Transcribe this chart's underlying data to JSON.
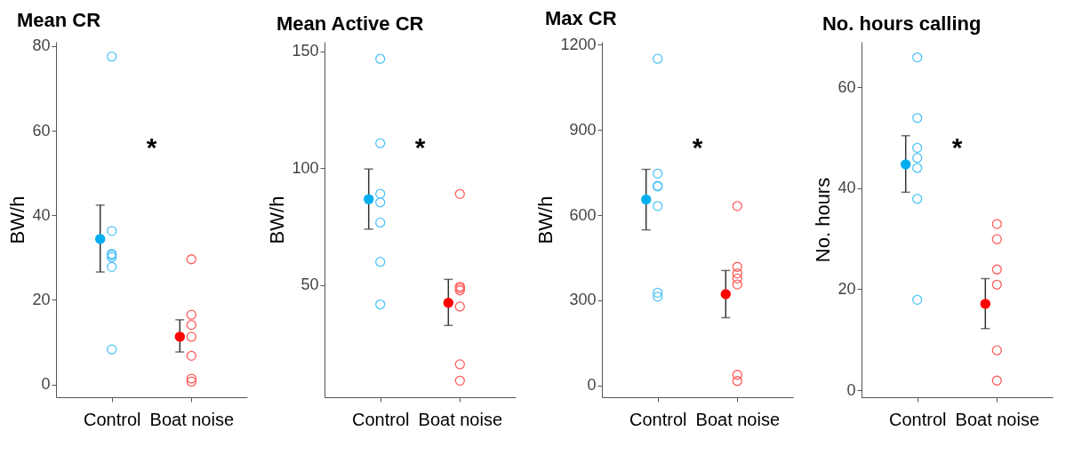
{
  "chart_data": [
    {
      "type": "scatter",
      "title": "Mean CR",
      "ylabel": "BW/h",
      "categories": [
        "Control",
        "Boat noise"
      ],
      "ylim": [
        -3,
        81
      ],
      "yticks": [
        0,
        20,
        40,
        60,
        80
      ],
      "grid": false,
      "marker": "circle",
      "series": [
        {
          "color": "#4fc3f7",
          "x": [
            "Control",
            "Control",
            "Control",
            "Control",
            "Control",
            "Control",
            "Control"
          ],
          "values": [
            77.5,
            36.3,
            30.9,
            30.6,
            30.1,
            27.8,
            8.3
          ]
        },
        {
          "color": "#ff5c5c",
          "x": [
            "Boat noise",
            "Boat noise",
            "Boat noise",
            "Boat noise",
            "Boat noise",
            "Boat noise",
            "Boat noise"
          ],
          "values": [
            29.6,
            16.5,
            14.1,
            11.3,
            6.8,
            1.4,
            0.7
          ]
        },
        {
          "color": "#00aeef",
          "x": [
            "Control"
          ],
          "values": [
            34.4
          ],
          "errors": [
            [
              26.6,
              42.4
            ]
          ]
        },
        {
          "color": "#ff0000",
          "x": [
            "Boat noise"
          ],
          "values": [
            11.3
          ],
          "errors": [
            [
              7.7,
              15.3
            ]
          ]
        }
      ],
      "annotations": [
        "*"
      ]
    },
    {
      "type": "scatter",
      "title": "Mean Active CR",
      "ylabel": "BW/h",
      "categories": [
        "Control",
        "Boat noise"
      ],
      "ylim": [
        2,
        154
      ],
      "yticks": [
        50,
        100,
        150
      ],
      "grid": false,
      "marker": "circle",
      "series": [
        {
          "color": "#4fc3f7",
          "x": [
            "Control",
            "Control",
            "Control",
            "Control",
            "Control",
            "Control",
            "Control"
          ],
          "values": [
            146.7,
            110.6,
            89,
            85.3,
            76.7,
            59.9,
            41.7
          ]
        },
        {
          "color": "#ff5c5c",
          "x": [
            "Boat noise",
            "Boat noise",
            "Boat noise",
            "Boat noise",
            "Boat noise",
            "Boat noise",
            "Boat noise"
          ],
          "values": [
            88.9,
            49.3,
            48.6,
            47.7,
            40.8,
            16.1,
            9.1
          ]
        },
        {
          "color": "#00aeef",
          "x": [
            "Control"
          ],
          "values": [
            86.7
          ],
          "errors": [
            [
              73.9,
              99.6
            ]
          ]
        },
        {
          "color": "#ff0000",
          "x": [
            "Boat noise"
          ],
          "values": [
            42.4
          ],
          "errors": [
            [
              32.7,
              52.4
            ]
          ]
        }
      ],
      "annotations": [
        "*"
      ]
    },
    {
      "type": "scatter",
      "title": "Max CR",
      "ylabel": "BW/h",
      "categories": [
        "Control",
        "Boat noise"
      ],
      "ylim": [
        -41,
        1210
      ],
      "yticks": [
        0,
        300,
        600,
        900,
        1200
      ],
      "grid": false,
      "marker": "circle",
      "series": [
        {
          "color": "#4fc3f7",
          "x": [
            "Control",
            "Control",
            "Control",
            "Control",
            "Control",
            "Control",
            "Control"
          ],
          "values": [
            1150,
            746,
            703,
            701,
            632,
            327,
            313
          ]
        },
        {
          "color": "#ff5c5c",
          "x": [
            "Boat noise",
            "Boat noise",
            "Boat noise",
            "Boat noise",
            "Boat noise",
            "Boat noise",
            "Boat noise"
          ],
          "values": [
            632,
            418,
            395,
            377,
            356,
            38,
            16
          ]
        },
        {
          "color": "#00aeef",
          "x": [
            "Control"
          ],
          "values": [
            655
          ],
          "errors": [
            [
              548,
              761
            ]
          ]
        },
        {
          "color": "#ff0000",
          "x": [
            "Boat noise"
          ],
          "values": [
            322
          ],
          "errors": [
            [
              239,
              405
            ]
          ]
        }
      ],
      "annotations": [
        "*"
      ]
    },
    {
      "type": "scatter",
      "title": "No. hours calling",
      "ylabel": "No. hours",
      "categories": [
        "Control",
        "Boat noise"
      ],
      "ylim": [
        -1.4,
        69
      ],
      "yticks": [
        0,
        20,
        40,
        60
      ],
      "grid": false,
      "marker": "circle",
      "series": [
        {
          "color": "#4fc3f7",
          "x": [
            "Control",
            "Control",
            "Control",
            "Control",
            "Control",
            "Control",
            "Control"
          ],
          "values": [
            65.9,
            53.9,
            48,
            46,
            44,
            37.9,
            17.9
          ]
        },
        {
          "color": "#ff5c5c",
          "x": [
            "Boat noise",
            "Boat noise",
            "Boat noise",
            "Boat noise",
            "Boat noise",
            "Boat noise"
          ],
          "values": [
            32.9,
            29.9,
            23.9,
            20.9,
            7.9,
            1.9
          ]
        },
        {
          "color": "#00aeef",
          "x": [
            "Control"
          ],
          "values": [
            44.7
          ],
          "errors": [
            [
              39.2,
              50.4
            ]
          ]
        },
        {
          "color": "#ff0000",
          "x": [
            "Boat noise"
          ],
          "values": [
            17.1
          ],
          "errors": [
            [
              12.2,
              22.1
            ]
          ]
        }
      ],
      "annotations": [
        "*"
      ]
    }
  ]
}
